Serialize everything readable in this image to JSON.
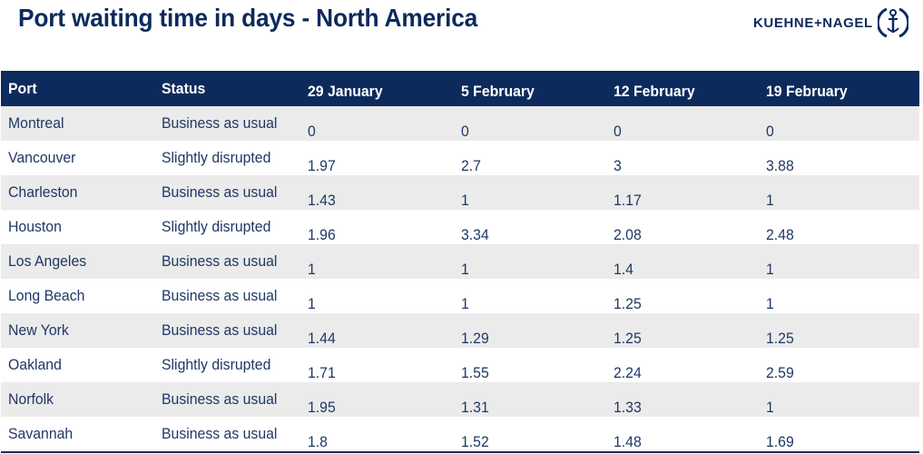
{
  "title": "Port waiting time in days - North America",
  "logo": {
    "text": "KUEHNE+NAGEL",
    "icon": "anchor-icon"
  },
  "colors": {
    "header_bg": "#0d2a5c",
    "text": "#1f3864",
    "row_shade": "#ebebeb"
  },
  "table": {
    "columns": [
      "Port",
      "Status",
      "29 January",
      "5 February",
      "12 February",
      "19 February"
    ],
    "rows": [
      {
        "port": "Montreal",
        "status": "Business as usual",
        "values": [
          "0",
          "0",
          "0",
          "0"
        ]
      },
      {
        "port": "Vancouver",
        "status": "Slightly disrupted",
        "values": [
          "1.97",
          "2.7",
          "3",
          "3.88"
        ]
      },
      {
        "port": "Charleston",
        "status": "Business as usual",
        "values": [
          "1.43",
          "1",
          "1.17",
          "1"
        ]
      },
      {
        "port": "Houston",
        "status": "Slightly disrupted",
        "values": [
          "1.96",
          "3.34",
          "2.08",
          "2.48"
        ]
      },
      {
        "port": "Los Angeles",
        "status": "Business as usual",
        "values": [
          "1",
          "1",
          "1.4",
          "1"
        ]
      },
      {
        "port": "Long Beach",
        "status": "Business as usual",
        "values": [
          "1",
          "1",
          "1.25",
          "1"
        ]
      },
      {
        "port": "New York",
        "status": "Business as usual",
        "values": [
          "1.44",
          "1.29",
          "1.25",
          "1.25"
        ]
      },
      {
        "port": "Oakland",
        "status": "Slightly disrupted",
        "values": [
          "1.71",
          "1.55",
          "2.24",
          "2.59"
        ]
      },
      {
        "port": "Norfolk",
        "status": "Business as usual",
        "values": [
          "1.95",
          "1.31",
          "1.33",
          "1"
        ]
      },
      {
        "port": "Savannah",
        "status": "Business as usual",
        "values": [
          "1.8",
          "1.52",
          "1.48",
          "1.69"
        ]
      }
    ]
  }
}
